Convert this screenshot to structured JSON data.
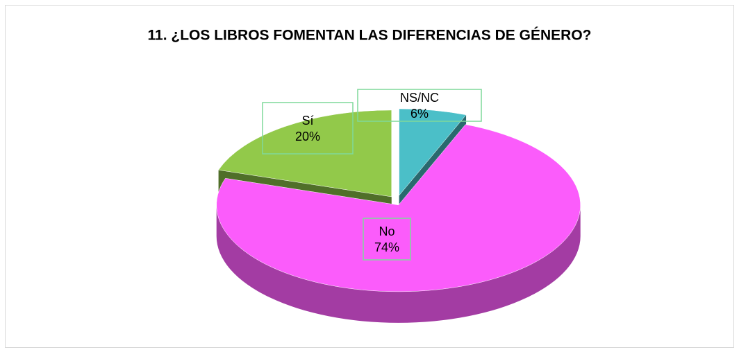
{
  "chart_data": {
    "type": "pie",
    "title": "11. ¿LOS LIBROS FOMENTAN LAS DIFERENCIAS DE GÉNERO?",
    "categories": [
      "NS/NC",
      "No",
      "Sí"
    ],
    "values": [
      6,
      74,
      20
    ],
    "value_labels": [
      "6%",
      "74%",
      "20%"
    ],
    "colors": [
      "#4bbfc8",
      "#fb5cfb",
      "#92c94a"
    ]
  }
}
